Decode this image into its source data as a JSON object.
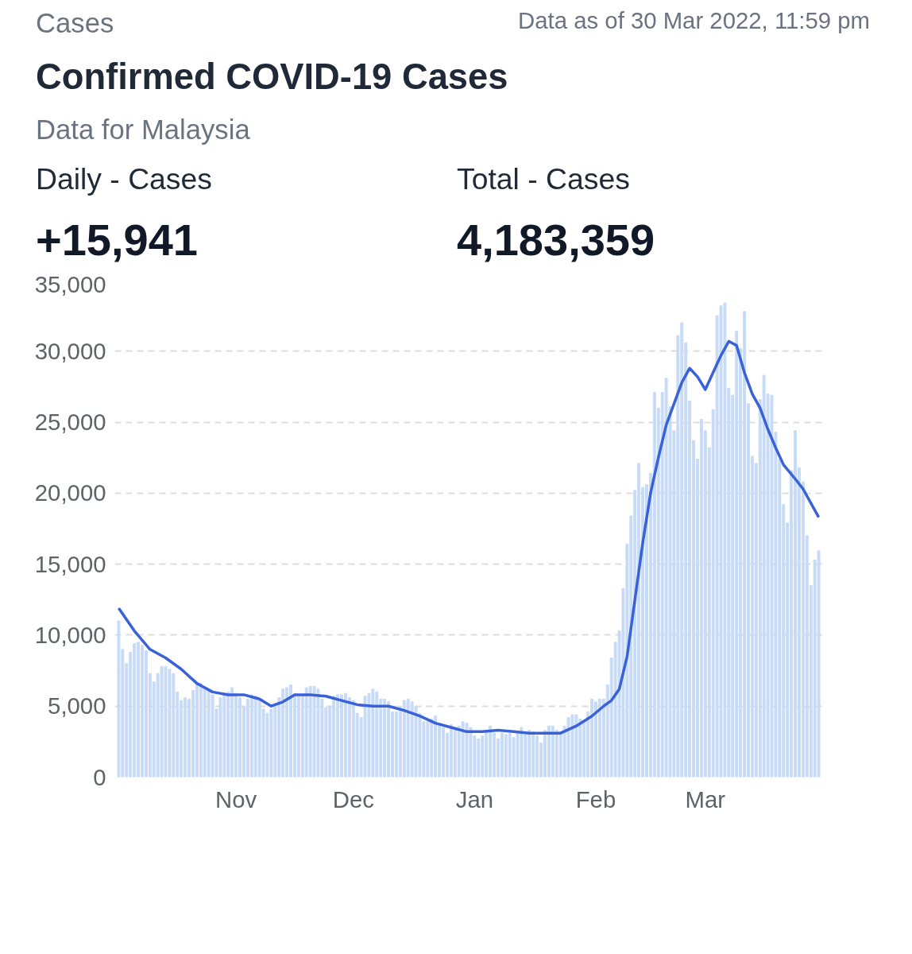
{
  "chart_data": {
    "type": "bar",
    "title": "Confirmed COVID-19 Cases",
    "subtitle": "Data for Malaysia",
    "annotations": [
      "Cases",
      "Data as of 30 Mar 2022, 11:59 pm",
      "Daily - Cases",
      "+15,941",
      "Total - Cases",
      "4,183,359"
    ],
    "x": [
      "2021-10-02",
      "2021-10-03",
      "2021-10-04",
      "2021-10-05",
      "2021-10-06",
      "2021-10-07",
      "2021-10-08",
      "2021-10-09",
      "2021-10-10",
      "2021-10-11",
      "2021-10-12",
      "2021-10-13",
      "2021-10-14",
      "2021-10-15",
      "2021-10-16",
      "2021-10-17",
      "2021-10-18",
      "2021-10-19",
      "2021-10-20",
      "2021-10-21",
      "2021-10-22",
      "2021-10-23",
      "2021-10-24",
      "2021-10-25",
      "2021-10-26",
      "2021-10-27",
      "2021-10-28",
      "2021-10-29",
      "2021-10-30",
      "2021-10-31",
      "2021-11-01",
      "2021-11-02",
      "2021-11-03",
      "2021-11-04",
      "2021-11-05",
      "2021-11-06",
      "2021-11-07",
      "2021-11-08",
      "2021-11-09",
      "2021-11-10",
      "2021-11-11",
      "2021-11-12",
      "2021-11-13",
      "2021-11-14",
      "2021-11-15",
      "2021-11-16",
      "2021-11-17",
      "2021-11-18",
      "2021-11-19",
      "2021-11-20",
      "2021-11-21",
      "2021-11-22",
      "2021-11-23",
      "2021-11-24",
      "2021-11-25",
      "2021-11-26",
      "2021-11-27",
      "2021-11-28",
      "2021-11-29",
      "2021-11-30",
      "2021-12-01",
      "2021-12-02",
      "2021-12-03",
      "2021-12-04",
      "2021-12-05",
      "2021-12-06",
      "2021-12-07",
      "2021-12-08",
      "2021-12-09",
      "2021-12-10",
      "2021-12-11",
      "2021-12-12",
      "2021-12-13",
      "2021-12-14",
      "2021-12-15",
      "2021-12-16",
      "2021-12-17",
      "2021-12-18",
      "2021-12-19",
      "2021-12-20",
      "2021-12-21",
      "2021-12-22",
      "2021-12-23",
      "2021-12-24",
      "2021-12-25",
      "2021-12-26",
      "2021-12-27",
      "2021-12-28",
      "2021-12-29",
      "2021-12-30",
      "2021-12-31",
      "2022-01-01",
      "2022-01-02",
      "2022-01-03",
      "2022-01-04",
      "2022-01-05",
      "2022-01-06",
      "2022-01-07",
      "2022-01-08",
      "2022-01-09",
      "2022-01-10",
      "2022-01-11",
      "2022-01-12",
      "2022-01-13",
      "2022-01-14",
      "2022-01-15",
      "2022-01-16",
      "2022-01-17",
      "2022-01-18",
      "2022-01-19",
      "2022-01-20",
      "2022-01-21",
      "2022-01-22",
      "2022-01-23",
      "2022-01-24",
      "2022-01-25",
      "2022-01-26",
      "2022-01-27",
      "2022-01-28",
      "2022-01-29",
      "2022-01-30",
      "2022-01-31",
      "2022-02-01",
      "2022-02-02",
      "2022-02-03",
      "2022-02-04",
      "2022-02-05",
      "2022-02-06",
      "2022-02-07",
      "2022-02-08",
      "2022-02-09",
      "2022-02-10",
      "2022-02-11",
      "2022-02-12",
      "2022-02-13",
      "2022-02-14",
      "2022-02-15",
      "2022-02-16",
      "2022-02-17",
      "2022-02-18",
      "2022-02-19",
      "2022-02-20",
      "2022-02-21",
      "2022-02-22",
      "2022-02-23",
      "2022-02-24",
      "2022-02-25",
      "2022-02-26",
      "2022-02-27",
      "2022-02-28",
      "2022-03-01",
      "2022-03-02",
      "2022-03-03",
      "2022-03-04",
      "2022-03-05",
      "2022-03-06",
      "2022-03-07",
      "2022-03-08",
      "2022-03-09",
      "2022-03-10",
      "2022-03-11",
      "2022-03-12",
      "2022-03-13",
      "2022-03-14",
      "2022-03-15",
      "2022-03-16",
      "2022-03-17",
      "2022-03-18",
      "2022-03-19",
      "2022-03-20",
      "2022-03-21",
      "2022-03-22",
      "2022-03-23",
      "2022-03-24",
      "2022-03-25",
      "2022-03-26",
      "2022-03-27",
      "2022-03-28",
      "2022-03-29",
      "2022-03-30"
    ],
    "series": [
      {
        "color": "#c8dbf6",
        "values": [
          11000,
          9000,
          8000,
          8800,
          9400,
          9500,
          9300,
          8900,
          7300,
          6700,
          7300,
          7800,
          7800,
          7600,
          7300,
          6000,
          5400,
          5600,
          5500,
          6100,
          6500,
          6600,
          6300,
          6100,
          5800,
          4800,
          5600,
          5900,
          6000,
          6300,
          5900,
          5600,
          5000,
          5500,
          5800,
          5700,
          5500,
          4800,
          4500,
          4800,
          5100,
          5600,
          6200,
          6300,
          6500,
          5900,
          5700,
          5800,
          6300,
          6400,
          6400,
          6200,
          5500,
          4900,
          5000,
          5700,
          5800,
          5800,
          5900,
          5600,
          5400,
          4500,
          4200,
          5700,
          5900,
          6200,
          6000,
          5500,
          5500,
          5300,
          4600,
          4600,
          5000,
          5400,
          5500,
          5300,
          5000,
          4500,
          3900,
          3900,
          4100,
          4300,
          3800,
          3500,
          3100,
          3700,
          3500,
          3600,
          3900,
          3800,
          3500,
          2900,
          2700,
          2900,
          3300,
          3600,
          3100,
          2700,
          3100,
          3000,
          3100,
          2800,
          3100,
          3500,
          3000,
          3300,
          3200,
          2900,
          2400,
          3300,
          3600,
          3600,
          3300,
          3200,
          3600,
          4200,
          4400,
          4400,
          4100,
          3900,
          4600,
          5500,
          5300,
          5500,
          5500,
          6500,
          8400,
          9500,
          10300,
          13300,
          16400,
          18400,
          20200,
          22100,
          20400,
          20600,
          21400,
          27100,
          26000,
          27100,
          28100,
          26100,
          24400,
          31100,
          32000,
          30600,
          26500,
          23700,
          22400,
          25200,
          24400,
          23200,
          25900,
          32500,
          33200,
          33400,
          27400,
          26900,
          31400,
          30200,
          32800,
          26300,
          22600,
          22100,
          26600,
          28300,
          27000,
          26900,
          24300,
          22400,
          19200,
          17900,
          21600,
          24400,
          21800,
          20800,
          17000,
          13500,
          15300,
          15941
        ]
      },
      {
        "type": "line",
        "color": "#3a62d8",
        "x": [
          "2021-10-02",
          "2021-10-06",
          "2021-10-10",
          "2021-10-14",
          "2021-10-18",
          "2021-10-22",
          "2021-10-26",
          "2021-10-30",
          "2021-11-03",
          "2021-11-07",
          "2021-11-10",
          "2021-11-13",
          "2021-11-16",
          "2021-11-20",
          "2021-11-24",
          "2021-11-28",
          "2021-12-02",
          "2021-12-06",
          "2021-12-10",
          "2021-12-14",
          "2021-12-18",
          "2021-12-22",
          "2021-12-26",
          "2021-12-30",
          "2022-01-03",
          "2022-01-07",
          "2022-01-11",
          "2022-01-15",
          "2022-01-19",
          "2022-01-23",
          "2022-01-27",
          "2022-01-31",
          "2022-02-03",
          "2022-02-05",
          "2022-02-07",
          "2022-02-09",
          "2022-02-11",
          "2022-02-13",
          "2022-02-15",
          "2022-02-17",
          "2022-02-19",
          "2022-02-21",
          "2022-02-23",
          "2022-02-25",
          "2022-02-27",
          "2022-03-01",
          "2022-03-03",
          "2022-03-05",
          "2022-03-07",
          "2022-03-09",
          "2022-03-11",
          "2022-03-13",
          "2022-03-15",
          "2022-03-17",
          "2022-03-19",
          "2022-03-21",
          "2022-03-24",
          "2022-03-26",
          "2022-03-30"
        ],
        "values": [
          11900,
          10300,
          9000,
          8400,
          7600,
          6600,
          6000,
          5800,
          5800,
          5500,
          5000,
          5300,
          5800,
          5800,
          5700,
          5400,
          5100,
          5000,
          5000,
          4700,
          4300,
          3800,
          3500,
          3200,
          3200,
          3300,
          3200,
          3100,
          3100,
          3100,
          3600,
          4300,
          5000,
          5400,
          6200,
          8500,
          12500,
          16500,
          20000,
          22500,
          24800,
          26300,
          27800,
          28800,
          28200,
          27300,
          28500,
          29700,
          30700,
          30400,
          28500,
          27000,
          26000,
          24500,
          23200,
          22000,
          21000,
          20300,
          18300
        ]
      }
    ],
    "xlim": [
      "2021-10-01",
      "2022-03-31"
    ],
    "xticks": [
      {
        "value": "2021-11-01",
        "label": "Nov"
      },
      {
        "value": "2021-12-01",
        "label": "Dec"
      },
      {
        "value": "2022-01-01",
        "label": "Jan"
      },
      {
        "value": "2022-02-01",
        "label": "Feb"
      },
      {
        "value": "2022-03-01",
        "label": "Mar"
      }
    ],
    "ylim": [
      0,
      35000
    ],
    "yticks": [
      0,
      {
        "value": 5000,
        "label": "5,000"
      },
      {
        "value": 10000,
        "label": "10,000"
      },
      {
        "value": 15000,
        "label": "15,000"
      },
      {
        "value": 20000,
        "label": "20,000"
      },
      {
        "value": 25000,
        "label": "25,000"
      },
      {
        "value": 30000,
        "label": "30,000"
      },
      {
        "value": 35000,
        "label": "35,000"
      }
    ],
    "grid": "y"
  }
}
